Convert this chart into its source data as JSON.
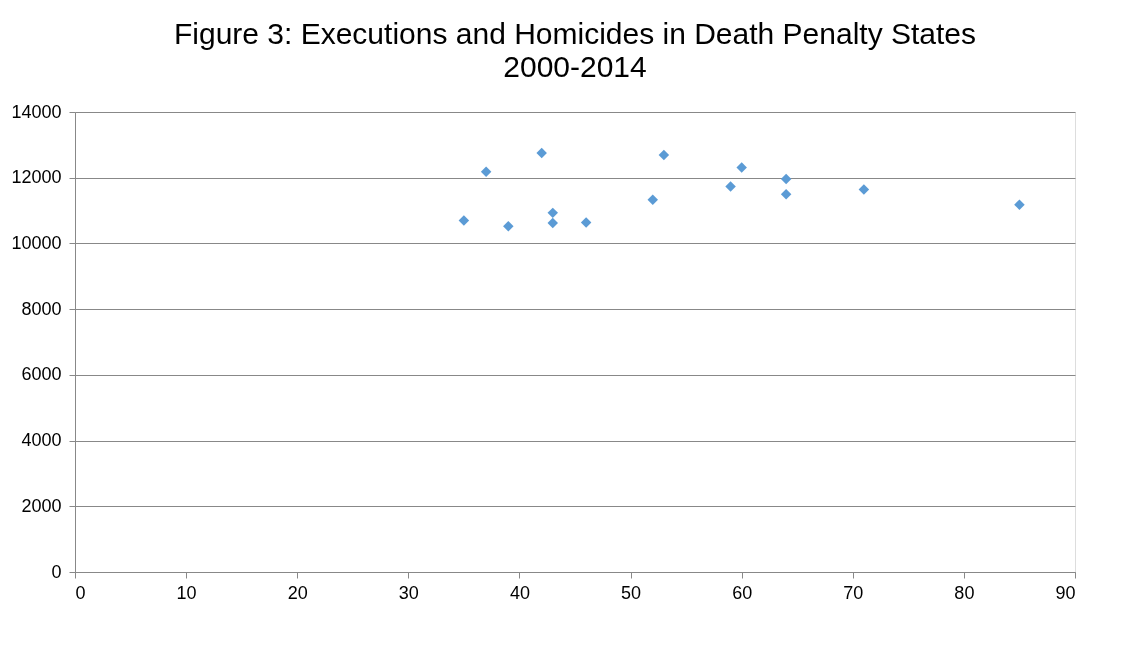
{
  "chart_data": {
    "type": "scatter",
    "title": "Figure 3: Executions and Homicides in Death Penalty States",
    "subtitle": "2000-2014",
    "x": [
      35,
      37,
      39,
      42,
      43,
      43,
      46,
      52,
      53,
      59,
      60,
      64,
      64,
      71,
      85
    ],
    "values": [
      10700,
      12180,
      10520,
      12750,
      10930,
      10620,
      10640,
      11330,
      12690,
      11730,
      12310,
      11960,
      11500,
      11640,
      11180
    ],
    "color": "#5b9bd5",
    "marker": "diamond",
    "grid": "y",
    "xlim": [
      0,
      90
    ],
    "xticks": [
      0,
      10,
      20,
      30,
      40,
      50,
      60,
      70,
      80,
      90
    ],
    "ylim": [
      0,
      14000
    ],
    "yticks": [
      0,
      2000,
      4000,
      6000,
      8000,
      10000,
      12000,
      14000
    ]
  }
}
